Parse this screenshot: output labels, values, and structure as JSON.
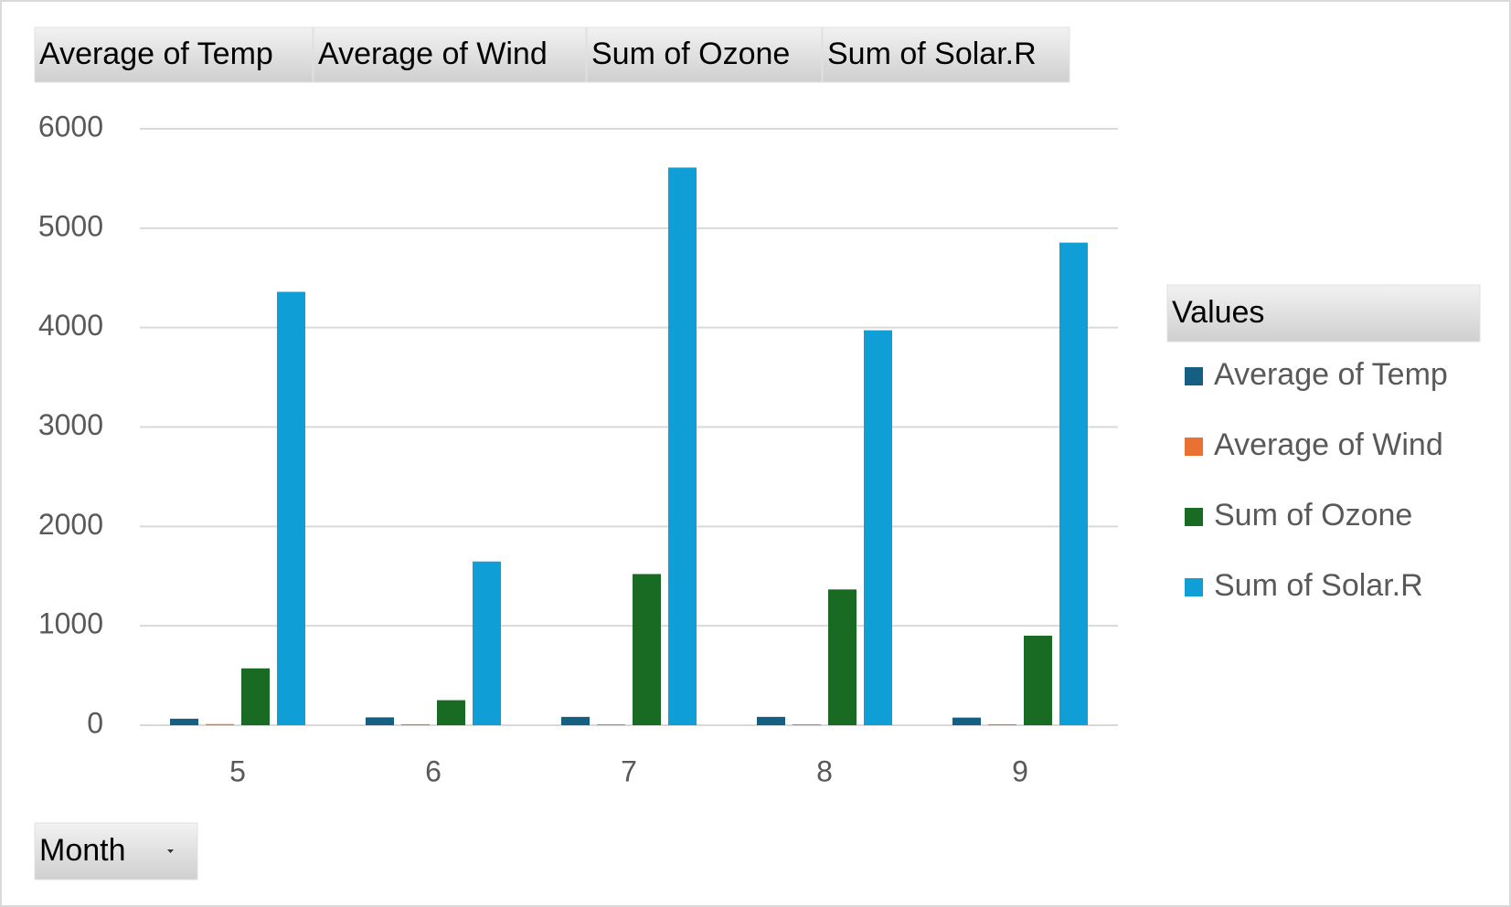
{
  "chart_data": {
    "type": "bar",
    "categories": [
      "5",
      "6",
      "7",
      "8",
      "9"
    ],
    "x_field": "Month",
    "legend_title": "Values",
    "legend_position": "right",
    "grid": true,
    "ylim": [
      0,
      6000
    ],
    "yticks": [
      0,
      1000,
      2000,
      3000,
      4000,
      5000,
      6000
    ],
    "series": [
      {
        "name": "Average of Temp",
        "color": "#156082",
        "values": [
          65.5,
          79.1,
          83.9,
          84.0,
          76.9
        ]
      },
      {
        "name": "Average of Wind",
        "color": "#e97132",
        "values": [
          11.6,
          10.3,
          8.9,
          8.8,
          10.2
        ]
      },
      {
        "name": "Sum of Ozone",
        "color": "#196b24",
        "values": [
          572,
          252,
          1521,
          1366,
          901
        ]
      },
      {
        "name": "Sum of Solar.R",
        "color": "#0f9ed5",
        "values": [
          4360,
          1647,
          5610,
          3973,
          4855
        ]
      }
    ]
  }
}
